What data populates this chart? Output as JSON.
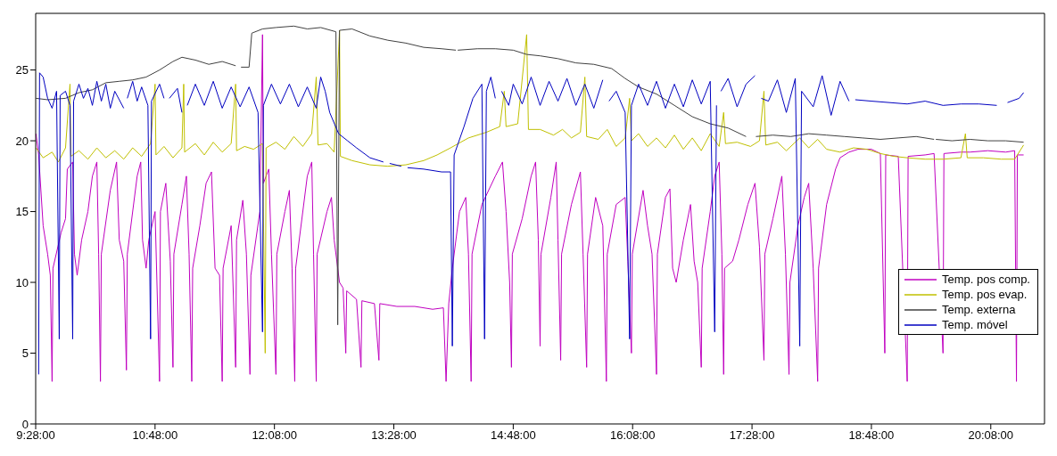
{
  "chart_data": {
    "type": "line",
    "xlim": [
      9.4667,
      20.7333
    ],
    "xticks": [
      {
        "value": 9.4667,
        "label": "9:28:00"
      },
      {
        "value": 10.8,
        "label": "10:48:00"
      },
      {
        "value": 12.1333,
        "label": "12:08:00"
      },
      {
        "value": 13.4667,
        "label": "13:28:00"
      },
      {
        "value": 14.8,
        "label": "14:48:00"
      },
      {
        "value": 16.1333,
        "label": "16:08:00"
      },
      {
        "value": 17.4667,
        "label": "17:28:00"
      },
      {
        "value": 18.8,
        "label": "18:48:00"
      },
      {
        "value": 20.1333,
        "label": "20:08:00"
      }
    ],
    "ylim": [
      0,
      29
    ],
    "yticks": [
      0,
      5,
      10,
      15,
      20,
      25
    ],
    "grid": false,
    "legend": "bottom right",
    "marker": "none",
    "line_style": "solid",
    "series": [
      {
        "name": "Temp. pos comp.",
        "color": "#c000c0",
        "x": [
          9.47,
          9.5,
          9.55,
          9.6,
          9.63,
          9.65,
          9.66,
          9.75,
          9.8,
          9.82,
          9.88,
          9.9,
          9.93,
          9.98,
          10.05,
          10.1,
          10.15,
          10.17,
          10.19,
          10.2,
          10.3,
          10.37,
          10.4,
          10.45,
          10.48,
          10.49,
          10.6,
          10.64,
          10.66,
          10.7,
          10.73,
          10.8,
          10.85,
          10.86,
          10.92,
          10.97,
          11,
          11.01,
          11.1,
          11.15,
          11.18,
          11.21,
          11.22,
          11.3,
          11.37,
          11.43,
          11.47,
          11.52,
          11.55,
          11.56,
          11.65,
          11.7,
          11.71,
          11.78,
          11.82,
          11.86,
          11.87,
          11.97,
          12,
          12.01,
          12.07,
          12.1,
          12.15,
          12.16,
          12.25,
          12.3,
          12.33,
          12.36,
          12.37,
          12.5,
          12.55,
          12.57,
          12.6,
          12.61,
          12.72,
          12.77,
          12.8,
          12.86,
          12.9,
          12.93,
          12.94,
          13.05,
          13.1,
          13.11,
          13.25,
          13.3,
          13.31,
          13.5,
          13.7,
          13.9,
          14.02,
          14.05,
          14.08,
          14.12,
          14.2,
          14.27,
          14.3,
          14.33,
          14.34,
          14.45,
          14.6,
          14.68,
          14.72,
          14.76,
          14.78,
          14.79,
          14.9,
          15,
          15.05,
          15.08,
          15.1,
          15.11,
          15.22,
          15.28,
          15.3,
          15.33,
          15.34,
          15.45,
          15.55,
          15.58,
          15.62,
          15.63,
          15.72,
          15.8,
          15.84,
          15.85,
          15.95,
          16.05,
          16.08,
          16.12,
          16.13,
          16.25,
          16.3,
          16.35,
          16.4,
          16.41,
          16.5,
          16.55,
          16.58,
          16.62,
          16.7,
          16.78,
          16.82,
          16.86,
          16.9,
          16.91,
          17,
          17.05,
          17.1,
          17.13,
          17.15,
          17.16,
          17.25,
          17.32,
          17.42,
          17.5,
          17.55,
          17.6,
          17.61,
          17.7,
          17.8,
          17.84,
          17.88,
          17.89,
          17.98,
          18.05,
          18.1,
          18.15,
          18.2,
          18.21,
          18.3,
          18.4,
          18.45,
          18.55,
          18.65,
          18.8,
          18.9,
          18.95,
          18.96,
          19.1,
          19.2,
          19.21,
          19.4,
          19.5,
          19.6,
          19.61,
          19.8,
          19.9,
          20.1,
          20.3,
          20.4,
          20.42,
          20.43,
          20.5
        ],
        "values": [
          20.5,
          19,
          14,
          12,
          10.5,
          3,
          11,
          13.5,
          14.5,
          18,
          18.5,
          12,
          10.5,
          13,
          15,
          17.5,
          18.5,
          12,
          3,
          12,
          16.5,
          18.5,
          13,
          11.5,
          3.8,
          12,
          17.5,
          18.5,
          13,
          11,
          13,
          15,
          3,
          15,
          17,
          11.5,
          4,
          12,
          15.5,
          17.5,
          12,
          3,
          11,
          14,
          17,
          17.8,
          11,
          10.5,
          3,
          11,
          14,
          4,
          13,
          15.8,
          12,
          3.5,
          10.5,
          15,
          27.5,
          17,
          18,
          12,
          3.5,
          12,
          15,
          16.5,
          11,
          3,
          11,
          17.5,
          18.5,
          12,
          3,
          12,
          15,
          16,
          13,
          10,
          9.6,
          5,
          9.4,
          8.8,
          4,
          8.7,
          8.5,
          4.5,
          8.5,
          8.3,
          8.3,
          8.1,
          8.2,
          3,
          8.5,
          11,
          15,
          16,
          12,
          3,
          12,
          15.5,
          17.5,
          18.5,
          15,
          10,
          4,
          12,
          14.5,
          17.5,
          18.5,
          13,
          5.5,
          12,
          16,
          18.5,
          13,
          4.5,
          12,
          15.5,
          17.8,
          12,
          4,
          12,
          16,
          14,
          3,
          12,
          15.5,
          16,
          11.5,
          5,
          12,
          16.5,
          14,
          12,
          3.5,
          12,
          16,
          16.6,
          11,
          10,
          13,
          15.5,
          11.5,
          10,
          4,
          11,
          15,
          17.5,
          18.5,
          12,
          3.5,
          11,
          11.5,
          13,
          15.5,
          17,
          12.5,
          4.5,
          12,
          14.5,
          17.5,
          12,
          3.5,
          10,
          14,
          16,
          17,
          11,
          3,
          11,
          15.5,
          18,
          18.8,
          19.2,
          19.4,
          19.4,
          19.1,
          5,
          19,
          18.9,
          3,
          18.9,
          19,
          19.1,
          5,
          19.1,
          19.2,
          19.2,
          19.3,
          19.2,
          19.3,
          3,
          19,
          19
        ]
      },
      {
        "name": "Temp. pos evap.",
        "color": "#c0c000",
        "x": [
          9.47,
          9.55,
          9.65,
          9.72,
          9.8,
          9.85,
          9.86,
          9.95,
          10.05,
          10.15,
          10.25,
          10.35,
          10.45,
          10.55,
          10.65,
          10.75,
          10.8,
          10.81,
          10.9,
          11,
          11.1,
          11.12,
          11.13,
          11.25,
          11.35,
          11.45,
          11.55,
          11.65,
          11.7,
          11.71,
          11.8,
          11.9,
          12,
          12.03,
          12.04,
          12.15,
          12.25,
          12.35,
          12.45,
          12.55,
          12.6,
          12.62,
          12.72,
          12.8,
          12.86,
          12.87,
          13,
          13.2,
          13.4,
          13.6,
          13.8,
          13.95,
          14.1,
          14.3,
          14.5,
          14.65,
          14.7,
          14.72,
          14.85,
          14.95,
          14.97,
          15.1,
          15.25,
          15.35,
          15.45,
          15.55,
          15.6,
          15.62,
          15.75,
          15.85,
          15.95,
          16.05,
          16.1,
          16.12,
          16.2,
          16.3,
          16.4,
          16.5,
          16.6,
          16.7,
          16.8,
          16.9,
          17,
          17.1,
          17.15,
          17.17,
          17.3,
          17.45,
          17.55,
          17.6,
          17.62,
          17.75,
          17.85,
          18,
          18.1,
          18.2,
          18.3,
          18.45,
          18.6,
          18.75,
          18.9,
          19.05,
          19.2,
          19.4,
          19.6,
          19.8,
          19.85,
          19.87,
          20.05,
          20.25,
          20.4,
          20.5
        ],
        "values": [
          19.5,
          18.8,
          19.2,
          18.5,
          19.5,
          24,
          18.9,
          19.3,
          18.7,
          19.5,
          18.8,
          19.3,
          18.7,
          19.5,
          18.9,
          19.8,
          24,
          19,
          19.6,
          18.8,
          19.5,
          24,
          19.2,
          19.8,
          19,
          19.9,
          19.2,
          19.8,
          24,
          19.3,
          19.6,
          19.4,
          19.8,
          5,
          19.5,
          19.9,
          19.4,
          20.3,
          19.6,
          20.5,
          24.5,
          19.7,
          19.8,
          19.2,
          27.8,
          18.9,
          18.6,
          18.3,
          18.2,
          18.3,
          18.6,
          19,
          19.5,
          20.2,
          20.6,
          21,
          23.5,
          21,
          21.2,
          27.5,
          20.8,
          20.8,
          20.4,
          20.8,
          20.2,
          20.6,
          24.5,
          20.3,
          20.1,
          20.8,
          19.6,
          20.2,
          23,
          20,
          20.5,
          19.6,
          20.2,
          19.5,
          20.4,
          19.4,
          20.2,
          19.3,
          20.5,
          19.6,
          22,
          19.8,
          19.9,
          19.6,
          20,
          23.5,
          19.7,
          19.9,
          19.3,
          20.2,
          19.5,
          20.1,
          19.4,
          19.2,
          19.5,
          19.4,
          19.1,
          18.9,
          18.8,
          18.7,
          18.7,
          18.8,
          20.5,
          18.8,
          18.8,
          18.7,
          18.7,
          19.7
        ]
      },
      {
        "name": "Temp. externa",
        "color": "#404040",
        "x": [
          9.47,
          9.6,
          9.8,
          9.95,
          10.1,
          10.25,
          10.4,
          10.55,
          10.7,
          10.85,
          11,
          11.1,
          11.25,
          11.4,
          11.55,
          11.7,
          11.75,
          11.76,
          11.85,
          11.88,
          12,
          12.15,
          12.35,
          12.5,
          12.65,
          12.82,
          12.84,
          12.86,
          13,
          13.2,
          13.4,
          13.6,
          13.8,
          14,
          14.16,
          14.17,
          14.18,
          14.4,
          14.6,
          14.8,
          14.95,
          15.1,
          15.3,
          15.5,
          15.7,
          15.9,
          16.05,
          16.2,
          16.4,
          16.6,
          16.8,
          17,
          17.2,
          17.4,
          17.5,
          17.51,
          17.7,
          17.9,
          18.1,
          18.3,
          18.5,
          18.7,
          18.9,
          19.1,
          19.3,
          19.5,
          19.51,
          19.52,
          19.7,
          19.9,
          20.1,
          20.3,
          20.5
        ],
        "values": [
          23,
          22.9,
          23,
          23.4,
          23.6,
          24.1,
          24.2,
          24.3,
          24.5,
          25,
          25.6,
          25.9,
          25.7,
          25.4,
          25.6,
          25.3,
          null,
          25.2,
          25.2,
          27.6,
          27.9,
          28,
          28.1,
          27.9,
          28,
          27.7,
          7,
          27.8,
          27.9,
          27.4,
          27.1,
          26.9,
          26.6,
          26.5,
          26.4,
          null,
          26.4,
          26.5,
          26.5,
          26.4,
          26.1,
          26,
          25.8,
          25.5,
          25.4,
          25.1,
          24.4,
          23.8,
          23.3,
          22.5,
          21.7,
          21.2,
          20.9,
          20.3,
          null,
          20.3,
          20.4,
          20.3,
          20.5,
          20.4,
          20.3,
          20.2,
          20.1,
          20.2,
          20.3,
          20.1,
          null,
          20.1,
          20,
          20.1,
          20,
          20,
          19.9
        ]
      },
      {
        "name": "Temp. móvel",
        "color": "#0000c0",
        "x": [
          9.5,
          9.51,
          9.55,
          9.6,
          9.65,
          9.7,
          9.73,
          9.74,
          9.8,
          9.85,
          9.88,
          9.89,
          9.95,
          10,
          10.05,
          10.1,
          10.15,
          10.2,
          10.25,
          10.3,
          10.35,
          10.45,
          10.48,
          10.49,
          10.55,
          10.6,
          10.65,
          10.72,
          10.75,
          10.76,
          10.85,
          10.9,
          10.95,
          10.96,
          11.05,
          11.1,
          11.15,
          11.16,
          11.25,
          11.35,
          11.45,
          11.55,
          11.65,
          11.75,
          11.85,
          11.95,
          12,
          12.01,
          12.1,
          12.2,
          12.3,
          12.4,
          12.5,
          12.6,
          12.65,
          12.7,
          12.75,
          12.85,
          12.95,
          13.05,
          13.2,
          13.35,
          13.4,
          13.42,
          13.55,
          13.6,
          13.62,
          13.8,
          14,
          14.1,
          14.12,
          14.14,
          14.25,
          14.35,
          14.45,
          14.48,
          14.5,
          14.55,
          14.6,
          14.65,
          14.67,
          14.75,
          14.8,
          14.9,
          15,
          15.1,
          15.2,
          15.3,
          15.4,
          15.5,
          15.6,
          15.7,
          15.8,
          15.85,
          15.87,
          15.95,
          16.05,
          16.1,
          16.12,
          16.2,
          16.3,
          16.4,
          16.5,
          16.6,
          16.7,
          16.8,
          16.9,
          17,
          17.05,
          17.07,
          17.1,
          17.12,
          17.2,
          17.3,
          17.4,
          17.5,
          17.55,
          17.57,
          17.65,
          17.75,
          17.85,
          17.95,
          18,
          18.02,
          18.15,
          18.25,
          18.35,
          18.45,
          18.55,
          18.6,
          18.62,
          18.8,
          19,
          19.2,
          19.4,
          19.6,
          19.8,
          20,
          20.2,
          20.3,
          20.32,
          20.45,
          20.5
        ],
        "values": [
          3.5,
          24.8,
          24.5,
          23,
          22.3,
          23.5,
          6,
          23.2,
          23.5,
          22.5,
          6,
          22.8,
          24,
          23,
          23.7,
          22.5,
          24.2,
          22.8,
          24,
          22.3,
          23.5,
          22.3,
          null,
          23,
          24.2,
          22.8,
          23.8,
          22.5,
          6,
          22.8,
          24,
          23,
          null,
          23,
          23.7,
          22,
          null,
          22.5,
          24,
          22.5,
          24.2,
          22.3,
          23.8,
          22.4,
          23.8,
          22,
          6.5,
          22.5,
          24,
          22.6,
          24,
          22.4,
          23.8,
          22.3,
          24.5,
          23.5,
          22,
          20.5,
          20,
          19.5,
          18.8,
          18.5,
          null,
          18.4,
          18.2,
          null,
          18.1,
          18,
          17.8,
          17.8,
          5.5,
          19,
          21,
          23,
          24,
          6,
          23.5,
          24.5,
          23,
          null,
          23.5,
          22.5,
          24,
          22.6,
          24.5,
          22.5,
          24.2,
          22.8,
          24.4,
          22.5,
          24,
          22.3,
          24.3,
          null,
          22.8,
          23.5,
          22,
          6,
          22.5,
          24,
          22.5,
          24.2,
          22.3,
          24,
          22.4,
          24.3,
          22.6,
          24.2,
          6.5,
          22.5,
          null,
          23.5,
          24.4,
          22.4,
          24,
          24.6,
          null,
          23,
          22.8,
          24.3,
          22,
          24.4,
          5.5,
          23.5,
          22.4,
          24.6,
          21.8,
          24.2,
          22.8,
          null,
          22.9,
          22.8,
          22.7,
          22.6,
          22.8,
          22.5,
          22.6,
          22.6,
          22.5,
          null,
          22.7,
          23,
          23.4
        ]
      }
    ]
  }
}
